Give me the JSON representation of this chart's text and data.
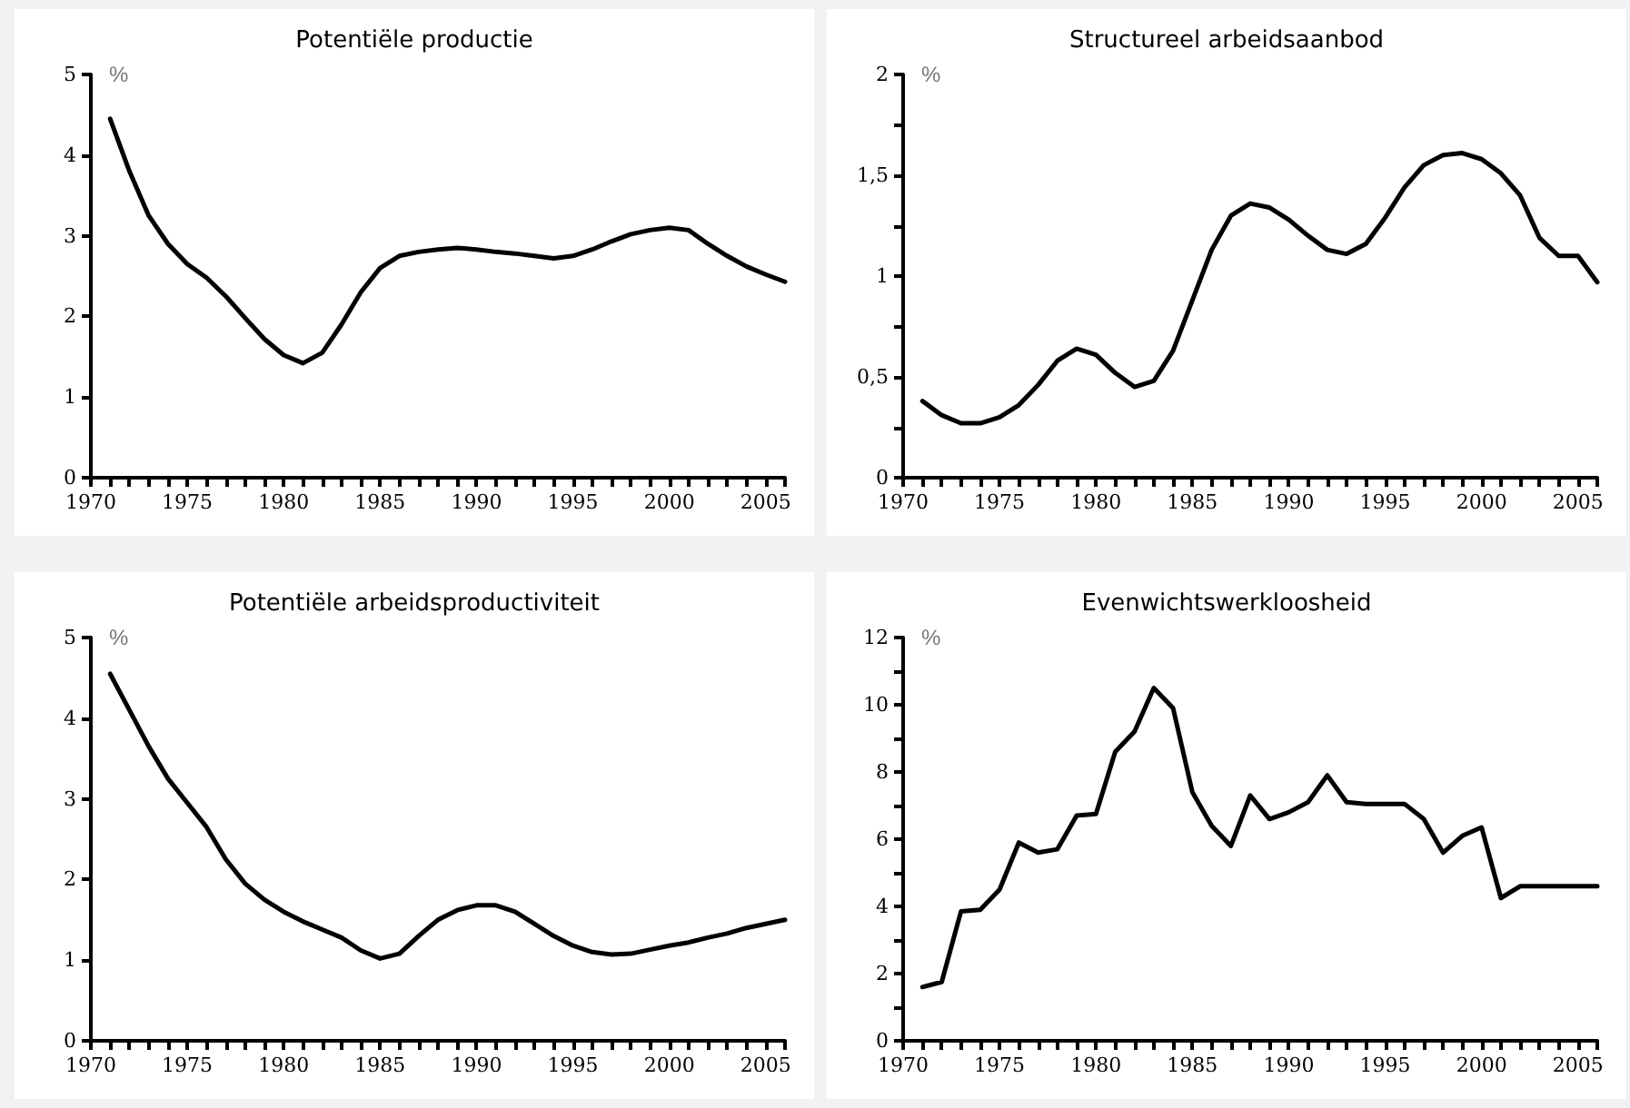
{
  "chart_data": [
    {
      "type": "line",
      "title": "Potentiële productie",
      "ylabel": "%",
      "x": [
        1971,
        1972,
        1973,
        1974,
        1975,
        1976,
        1977,
        1978,
        1979,
        1980,
        1981,
        1982,
        1983,
        1984,
        1985,
        1986,
        1987,
        1988,
        1989,
        1990,
        1991,
        1992,
        1993,
        1994,
        1995,
        1996,
        1997,
        1998,
        1999,
        2000,
        2001,
        2002,
        2003,
        2004,
        2005,
        2006
      ],
      "series": [
        {
          "color": "#000000",
          "values": [
            4.45,
            3.8,
            3.25,
            2.9,
            2.65,
            2.48,
            2.25,
            1.98,
            1.72,
            1.52,
            1.42,
            1.55,
            1.9,
            2.3,
            2.6,
            2.75,
            2.8,
            2.83,
            2.85,
            2.83,
            2.8,
            2.78,
            2.75,
            2.72,
            2.75,
            2.83,
            2.93,
            3.02,
            3.07,
            3.1,
            3.07,
            2.9,
            2.75,
            2.62,
            2.52,
            2.43
          ]
        }
      ],
      "xlim": [
        1970,
        2006
      ],
      "xticks": [
        1970,
        {
          "value": 1971,
          "label": null
        },
        {
          "value": 1972,
          "label": null
        },
        {
          "value": 1973,
          "label": null
        },
        {
          "value": 1974,
          "label": null
        },
        1975,
        {
          "value": 1976,
          "label": null
        },
        {
          "value": 1977,
          "label": null
        },
        {
          "value": 1978,
          "label": null
        },
        {
          "value": 1979,
          "label": null
        },
        1980,
        {
          "value": 1981,
          "label": null
        },
        {
          "value": 1982,
          "label": null
        },
        {
          "value": 1983,
          "label": null
        },
        {
          "value": 1984,
          "label": null
        },
        1985,
        {
          "value": 1986,
          "label": null
        },
        {
          "value": 1987,
          "label": null
        },
        {
          "value": 1988,
          "label": null
        },
        {
          "value": 1989,
          "label": null
        },
        1990,
        {
          "value": 1991,
          "label": null
        },
        {
          "value": 1992,
          "label": null
        },
        {
          "value": 1993,
          "label": null
        },
        {
          "value": 1994,
          "label": null
        },
        1995,
        {
          "value": 1996,
          "label": null
        },
        {
          "value": 1997,
          "label": null
        },
        {
          "value": 1998,
          "label": null
        },
        {
          "value": 1999,
          "label": null
        },
        2000,
        {
          "value": 2001,
          "label": null
        },
        {
          "value": 2002,
          "label": null
        },
        {
          "value": 2003,
          "label": null
        },
        {
          "value": 2004,
          "label": null
        },
        2005,
        {
          "value": 2006,
          "label": null
        }
      ],
      "ylim": [
        0,
        5
      ],
      "yticks": [
        0,
        1,
        2,
        3,
        4,
        5
      ],
      "grid": false,
      "marker": "none",
      "line_style": "solid"
    },
    {
      "type": "line",
      "title": "Structureel arbeidsaanbod",
      "ylabel": "%",
      "x": [
        1971,
        1972,
        1973,
        1974,
        1975,
        1976,
        1977,
        1978,
        1979,
        1980,
        1981,
        1982,
        1983,
        1984,
        1985,
        1986,
        1987,
        1988,
        1989,
        1990,
        1991,
        1992,
        1993,
        1994,
        1995,
        1996,
        1997,
        1998,
        1999,
        2000,
        2001,
        2002,
        2003,
        2004,
        2005,
        2006
      ],
      "series": [
        {
          "color": "#000000",
          "values": [
            0.38,
            0.31,
            0.27,
            0.27,
            0.3,
            0.36,
            0.46,
            0.58,
            0.64,
            0.61,
            0.52,
            0.45,
            0.48,
            0.63,
            0.88,
            1.13,
            1.3,
            1.36,
            1.34,
            1.28,
            1.2,
            1.13,
            1.11,
            1.16,
            1.29,
            1.44,
            1.55,
            1.6,
            1.61,
            1.58,
            1.51,
            1.4,
            1.19,
            1.1,
            1.1,
            0.97
          ]
        }
      ],
      "xlim": [
        1970,
        2006
      ],
      "xticks": [
        1970,
        {
          "value": 1971,
          "label": null
        },
        {
          "value": 1972,
          "label": null
        },
        {
          "value": 1973,
          "label": null
        },
        {
          "value": 1974,
          "label": null
        },
        1975,
        {
          "value": 1976,
          "label": null
        },
        {
          "value": 1977,
          "label": null
        },
        {
          "value": 1978,
          "label": null
        },
        {
          "value": 1979,
          "label": null
        },
        1980,
        {
          "value": 1981,
          "label": null
        },
        {
          "value": 1982,
          "label": null
        },
        {
          "value": 1983,
          "label": null
        },
        {
          "value": 1984,
          "label": null
        },
        1985,
        {
          "value": 1986,
          "label": null
        },
        {
          "value": 1987,
          "label": null
        },
        {
          "value": 1988,
          "label": null
        },
        {
          "value": 1989,
          "label": null
        },
        1990,
        {
          "value": 1991,
          "label": null
        },
        {
          "value": 1992,
          "label": null
        },
        {
          "value": 1993,
          "label": null
        },
        {
          "value": 1994,
          "label": null
        },
        1995,
        {
          "value": 1996,
          "label": null
        },
        {
          "value": 1997,
          "label": null
        },
        {
          "value": 1998,
          "label": null
        },
        {
          "value": 1999,
          "label": null
        },
        2000,
        {
          "value": 2001,
          "label": null
        },
        {
          "value": 2002,
          "label": null
        },
        {
          "value": 2003,
          "label": null
        },
        {
          "value": 2004,
          "label": null
        },
        2005,
        {
          "value": 2006,
          "label": null
        }
      ],
      "ylim": [
        0,
        2
      ],
      "yticks": [
        0,
        {
          "value": 0.25,
          "label": null
        },
        {
          "value": 0.5,
          "label": "0,5"
        },
        {
          "value": 0.75,
          "label": null
        },
        1,
        {
          "value": 1.25,
          "label": null
        },
        {
          "value": 1.5,
          "label": "1,5"
        },
        {
          "value": 1.75,
          "label": null
        },
        2
      ],
      "grid": false,
      "marker": "none",
      "line_style": "solid"
    },
    {
      "type": "line",
      "title": "Potentiële arbeidsproductiviteit",
      "ylabel": "%",
      "x": [
        1971,
        1972,
        1973,
        1974,
        1975,
        1976,
        1977,
        1978,
        1979,
        1980,
        1981,
        1982,
        1983,
        1984,
        1985,
        1986,
        1987,
        1988,
        1989,
        1990,
        1991,
        1992,
        1993,
        1994,
        1995,
        1996,
        1997,
        1998,
        1999,
        2000,
        2001,
        2002,
        2003,
        2004,
        2005,
        2006
      ],
      "series": [
        {
          "color": "#000000",
          "values": [
            4.55,
            4.1,
            3.65,
            3.25,
            2.95,
            2.65,
            2.25,
            1.95,
            1.75,
            1.6,
            1.48,
            1.38,
            1.28,
            1.12,
            1.02,
            1.08,
            1.3,
            1.5,
            1.62,
            1.68,
            1.68,
            1.6,
            1.45,
            1.3,
            1.18,
            1.1,
            1.07,
            1.08,
            1.13,
            1.18,
            1.22,
            1.28,
            1.33,
            1.4,
            1.45,
            1.5
          ]
        }
      ],
      "xlim": [
        1970,
        2006
      ],
      "xticks": [
        1970,
        {
          "value": 1971,
          "label": null
        },
        {
          "value": 1972,
          "label": null
        },
        {
          "value": 1973,
          "label": null
        },
        {
          "value": 1974,
          "label": null
        },
        1975,
        {
          "value": 1976,
          "label": null
        },
        {
          "value": 1977,
          "label": null
        },
        {
          "value": 1978,
          "label": null
        },
        {
          "value": 1979,
          "label": null
        },
        1980,
        {
          "value": 1981,
          "label": null
        },
        {
          "value": 1982,
          "label": null
        },
        {
          "value": 1983,
          "label": null
        },
        {
          "value": 1984,
          "label": null
        },
        1985,
        {
          "value": 1986,
          "label": null
        },
        {
          "value": 1987,
          "label": null
        },
        {
          "value": 1988,
          "label": null
        },
        {
          "value": 1989,
          "label": null
        },
        1990,
        {
          "value": 1991,
          "label": null
        },
        {
          "value": 1992,
          "label": null
        },
        {
          "value": 1993,
          "label": null
        },
        {
          "value": 1994,
          "label": null
        },
        1995,
        {
          "value": 1996,
          "label": null
        },
        {
          "value": 1997,
          "label": null
        },
        {
          "value": 1998,
          "label": null
        },
        {
          "value": 1999,
          "label": null
        },
        2000,
        {
          "value": 2001,
          "label": null
        },
        {
          "value": 2002,
          "label": null
        },
        {
          "value": 2003,
          "label": null
        },
        {
          "value": 2004,
          "label": null
        },
        2005,
        {
          "value": 2006,
          "label": null
        }
      ],
      "ylim": [
        0,
        5
      ],
      "yticks": [
        0,
        1,
        2,
        3,
        4,
        5
      ],
      "grid": false,
      "marker": "none",
      "line_style": "solid"
    },
    {
      "type": "line",
      "title": "Evenwichtswerkloosheid",
      "ylabel": "%",
      "x": [
        1971,
        1972,
        1973,
        1974,
        1975,
        1976,
        1977,
        1978,
        1979,
        1980,
        1981,
        1982,
        1983,
        1984,
        1985,
        1986,
        1987,
        1988,
        1989,
        1990,
        1991,
        1992,
        1993,
        1994,
        1995,
        1996,
        1997,
        1998,
        1999,
        2000,
        2001,
        2002,
        2003,
        2004,
        2005,
        2006
      ],
      "series": [
        {
          "color": "#000000",
          "values": [
            1.6,
            1.75,
            3.85,
            3.9,
            4.5,
            5.9,
            5.6,
            5.7,
            6.7,
            6.75,
            8.6,
            9.2,
            10.5,
            9.9,
            7.4,
            6.4,
            5.8,
            7.3,
            6.6,
            6.8,
            7.1,
            7.9,
            7.1,
            7.05,
            7.05,
            7.05,
            6.6,
            5.6,
            6.1,
            6.35,
            4.25,
            4.6,
            4.6,
            4.6,
            4.6,
            4.6
          ]
        }
      ],
      "xlim": [
        1970,
        2006
      ],
      "xticks": [
        1970,
        {
          "value": 1971,
          "label": null
        },
        {
          "value": 1972,
          "label": null
        },
        {
          "value": 1973,
          "label": null
        },
        {
          "value": 1974,
          "label": null
        },
        1975,
        {
          "value": 1976,
          "label": null
        },
        {
          "value": 1977,
          "label": null
        },
        {
          "value": 1978,
          "label": null
        },
        {
          "value": 1979,
          "label": null
        },
        1980,
        {
          "value": 1981,
          "label": null
        },
        {
          "value": 1982,
          "label": null
        },
        {
          "value": 1983,
          "label": null
        },
        {
          "value": 1984,
          "label": null
        },
        1985,
        {
          "value": 1986,
          "label": null
        },
        {
          "value": 1987,
          "label": null
        },
        {
          "value": 1988,
          "label": null
        },
        {
          "value": 1989,
          "label": null
        },
        1990,
        {
          "value": 1991,
          "label": null
        },
        {
          "value": 1992,
          "label": null
        },
        {
          "value": 1993,
          "label": null
        },
        {
          "value": 1994,
          "label": null
        },
        1995,
        {
          "value": 1996,
          "label": null
        },
        {
          "value": 1997,
          "label": null
        },
        {
          "value": 1998,
          "label": null
        },
        {
          "value": 1999,
          "label": null
        },
        2000,
        {
          "value": 2001,
          "label": null
        },
        {
          "value": 2002,
          "label": null
        },
        {
          "value": 2003,
          "label": null
        },
        {
          "value": 2004,
          "label": null
        },
        2005,
        {
          "value": 2006,
          "label": null
        }
      ],
      "ylim": [
        0,
        12
      ],
      "yticks": [
        0,
        {
          "value": 1,
          "label": null
        },
        2,
        {
          "value": 3,
          "label": null
        },
        4,
        {
          "value": 5,
          "label": null
        },
        6,
        {
          "value": 7,
          "label": null
        },
        8,
        {
          "value": 9,
          "label": null
        },
        10,
        {
          "value": 11,
          "label": null
        },
        12
      ],
      "grid": false,
      "marker": "none",
      "line_style": "solid"
    }
  ]
}
